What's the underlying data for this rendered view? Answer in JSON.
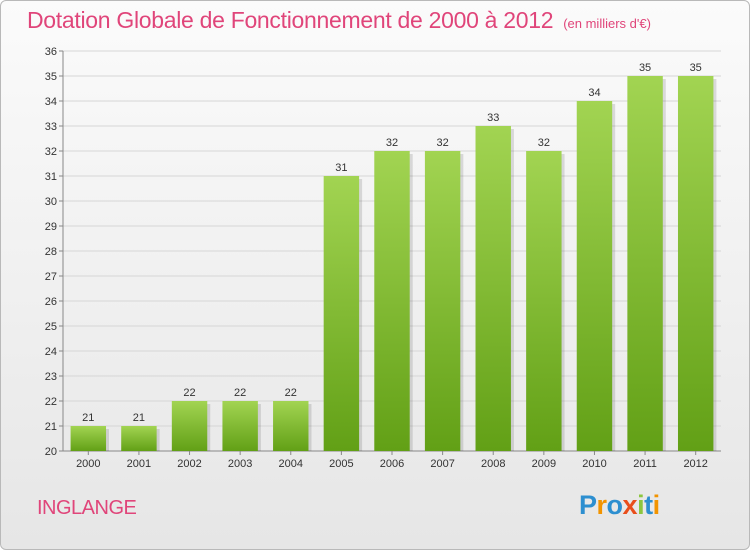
{
  "header": {
    "title": "Dotation Globale de Fonctionnement de 2000 à 2012",
    "subtitle": "(en milliers d'€)"
  },
  "commune": "INGLANGE",
  "logo": {
    "text": "Proxiti",
    "letters": [
      {
        "ch": "P",
        "color": "#2d8fd0"
      },
      {
        "ch": "r",
        "color": "#f29400"
      },
      {
        "ch": "o",
        "color": "#2d8fd0"
      },
      {
        "ch": "x",
        "color": "#e94e1b"
      },
      {
        "ch": "i",
        "color": "#8cc63f"
      },
      {
        "ch": "t",
        "color": "#2d8fd0"
      },
      {
        "ch": "i",
        "color": "#f29400"
      }
    ]
  },
  "chart_data": {
    "type": "bar",
    "title": "Dotation Globale de Fonctionnement de 2000 à 2012",
    "subtitle": "(en milliers d'€)",
    "categories": [
      "2000",
      "2001",
      "2002",
      "2003",
      "2004",
      "2005",
      "2006",
      "2007",
      "2008",
      "2009",
      "2010",
      "2011",
      "2012"
    ],
    "values": [
      21,
      21,
      22,
      22,
      22,
      31,
      32,
      32,
      33,
      32,
      34,
      35,
      35
    ],
    "ylim": [
      20,
      36
    ],
    "yticks": [
      20,
      21,
      22,
      23,
      24,
      25,
      26,
      27,
      28,
      29,
      30,
      31,
      32,
      33,
      34,
      35,
      36
    ],
    "grid": true,
    "bar_color": "#8cc63f",
    "bar_color_dark": "#6aa51e"
  }
}
